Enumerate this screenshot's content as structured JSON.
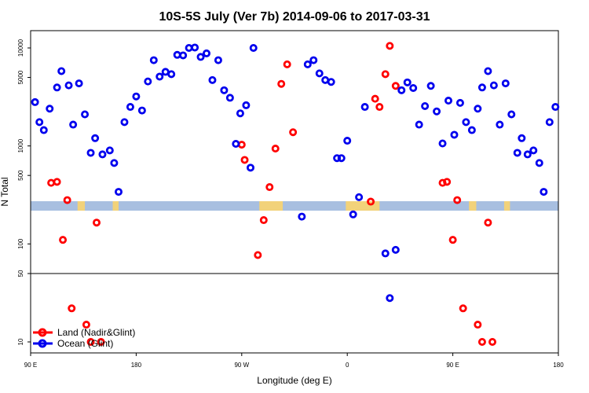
{
  "chart_data": {
    "type": "scatter",
    "title": "10S-5S July (Ver 7b)   2014-09-06 to 2017-03-31",
    "xlabel": "Longitude (deg E)",
    "ylabel": "N Total",
    "y_scale": "log",
    "xlim": [
      90,
      450
    ],
    "ylim": [
      5,
      15000
    ],
    "x_ticks": [
      {
        "value": 90,
        "label": "90 E"
      },
      {
        "value": 162,
        "label": "180"
      },
      {
        "value": 234,
        "label": "90 W"
      },
      {
        "value": 306,
        "label": "0"
      },
      {
        "value": 378,
        "label": "90 E"
      },
      {
        "value": 450,
        "label": "180"
      }
    ],
    "y_ticks": [
      {
        "value": 10,
        "label": "10"
      },
      {
        "value": 50,
        "label": "50"
      },
      {
        "value": 100,
        "label": "100"
      },
      {
        "value": 500,
        "label": "500"
      },
      {
        "value": 1000,
        "label": "1000"
      },
      {
        "value": 5000,
        "label": "5000"
      },
      {
        "value": 10000,
        "label": "10000"
      }
    ],
    "colors": {
      "land": "#ff0000",
      "ocean": "#0000ee",
      "map_ocean": "#a8bfe0",
      "map_land": "#f2d27a"
    },
    "legend": {
      "position": "bottom-left",
      "entries": [
        {
          "key": "land",
          "label": "Land (Nadir&Glint)"
        },
        {
          "key": "ocean",
          "label": "Ocean (Glint)"
        }
      ]
    },
    "series": [
      {
        "key": "land",
        "name": "Land (Nadir&Glint)",
        "points": [
          [
            104,
            420
          ],
          [
            108,
            430
          ],
          [
            112,
            110
          ],
          [
            115,
            280
          ],
          [
            118,
            22
          ],
          [
            128,
            15
          ],
          [
            131,
            10
          ],
          [
            135,
            165
          ],
          [
            138,
            10
          ],
          [
            234,
            1030
          ],
          [
            236,
            720
          ],
          [
            245,
            77
          ],
          [
            249,
            175
          ],
          [
            253,
            380
          ],
          [
            257,
            940
          ],
          [
            261,
            4300
          ],
          [
            265,
            6800
          ],
          [
            269,
            1380
          ],
          [
            322,
            270
          ],
          [
            325,
            3030
          ],
          [
            328,
            2500
          ],
          [
            332,
            5400
          ],
          [
            335,
            10500
          ],
          [
            339,
            4100
          ],
          [
            371,
            420
          ],
          [
            374,
            430
          ],
          [
            378,
            110
          ],
          [
            381,
            280
          ],
          [
            385,
            22
          ],
          [
            395,
            15
          ],
          [
            398,
            10
          ],
          [
            402,
            165
          ],
          [
            405,
            10
          ]
        ]
      },
      {
        "key": "ocean",
        "name": "Ocean (Glint)",
        "points": [
          [
            93,
            2800
          ],
          [
            96,
            1750
          ],
          [
            99,
            1450
          ],
          [
            103,
            2400
          ],
          [
            108,
            3950
          ],
          [
            111,
            5800
          ],
          [
            116,
            4150
          ],
          [
            119,
            1650
          ],
          [
            123,
            4350
          ],
          [
            127,
            2100
          ],
          [
            131,
            850
          ],
          [
            134,
            1200
          ],
          [
            139,
            820
          ],
          [
            144,
            900
          ],
          [
            147,
            670
          ],
          [
            150,
            340
          ],
          [
            154,
            1750
          ],
          [
            158,
            2500
          ],
          [
            162,
            3200
          ],
          [
            166,
            2300
          ],
          [
            170,
            4550
          ],
          [
            174,
            7500
          ],
          [
            178,
            5100
          ],
          [
            182,
            5700
          ],
          [
            186,
            5400
          ],
          [
            190,
            8500
          ],
          [
            194,
            8400
          ],
          [
            198,
            10000
          ],
          [
            202,
            10100
          ],
          [
            206,
            8100
          ],
          [
            210,
            8800
          ],
          [
            214,
            4700
          ],
          [
            218,
            7500
          ],
          [
            222,
            3700
          ],
          [
            226,
            3100
          ],
          [
            230,
            1050
          ],
          [
            233,
            2150
          ],
          [
            237,
            2600
          ],
          [
            240,
            600
          ],
          [
            242,
            10000
          ],
          [
            275,
            190
          ],
          [
            279,
            6800
          ],
          [
            283,
            7500
          ],
          [
            287,
            5500
          ],
          [
            291,
            4700
          ],
          [
            295,
            4500
          ],
          [
            299,
            750
          ],
          [
            302,
            750
          ],
          [
            306,
            1130
          ],
          [
            310,
            200
          ],
          [
            314,
            300
          ],
          [
            318,
            2500
          ],
          [
            332,
            80
          ],
          [
            335,
            28
          ],
          [
            339,
            87
          ],
          [
            343,
            3700
          ],
          [
            347,
            4450
          ],
          [
            351,
            3900
          ],
          [
            355,
            1650
          ],
          [
            359,
            2550
          ],
          [
            363,
            4100
          ],
          [
            367,
            2250
          ],
          [
            371,
            1060
          ],
          [
            375,
            2900
          ],
          [
            379,
            1300
          ],
          [
            383,
            2750
          ],
          [
            387,
            1750
          ],
          [
            391,
            1450
          ],
          [
            395,
            2400
          ],
          [
            398,
            3950
          ],
          [
            402,
            5800
          ],
          [
            406,
            4150
          ],
          [
            410,
            1650
          ],
          [
            414,
            4350
          ],
          [
            418,
            2100
          ],
          [
            422,
            850
          ],
          [
            425,
            1200
          ],
          [
            429,
            820
          ],
          [
            433,
            900
          ],
          [
            437,
            670
          ],
          [
            440,
            340
          ],
          [
            444,
            1750
          ],
          [
            448,
            2500
          ]
        ]
      }
    ]
  }
}
